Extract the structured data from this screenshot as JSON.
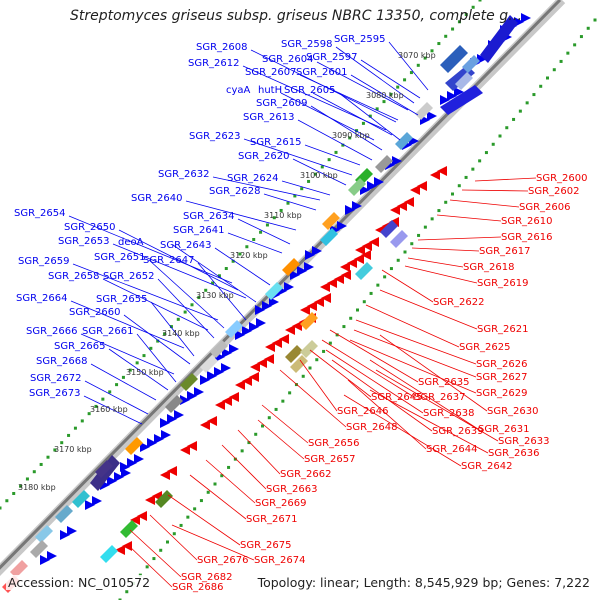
{
  "header": {
    "title": "Streptomyces griseus subsp. griseus NBRC 13350, complete gen..."
  },
  "footer": {
    "accession": "Accession: NC_010572",
    "summary": "Topology: linear; Length: 8,545,929 bp; Genes: 7,222"
  },
  "colors": {
    "forward": "#0000ee",
    "reverse": "#ee0000",
    "scale": "#888888",
    "gc": "#2a9a2a"
  },
  "scale_ticks": [
    "3070 kbp",
    "3080 kbp",
    "3090 kbp",
    "3100 kbp",
    "3110 kbp",
    "3120 kbp",
    "3130 kbp",
    "3140 kbp",
    "3150 kbp",
    "3160 kbp",
    "3170 kbp",
    "3180 kbp"
  ],
  "forward_labels": [
    "SGR_2595",
    "SGR_2597",
    "SGR_2598",
    "SGR_2601",
    "SGR_2604",
    "SGR_2607",
    "SGR_2608",
    "SGR_2612",
    "hutH",
    "SGR_2605",
    "cyaA",
    "SGR_2609",
    "SGR_2613",
    "SGR_2615",
    "SGR_2623",
    "SGR_2620",
    "SGR_2624",
    "SGR_2632",
    "SGR_2628",
    "SGR_2640",
    "SGR_2634",
    "SGR_2641",
    "SGR_2654",
    "SGR_2650",
    "SGR_2653",
    "deoA",
    "SGR_2643",
    "SGR_2659",
    "SGR_2651",
    "SGR_2647",
    "SGR_2658",
    "SGR_2652",
    "SGR_2664",
    "SGR_2655",
    "SGR_2660",
    "SGR_2666",
    "SGR_2661",
    "SGR_2665",
    "SGR_2668",
    "SGR_2672",
    "SGR_2673"
  ],
  "reverse_labels": [
    "SGR_2600",
    "SGR_2602",
    "SGR_2606",
    "SGR_2610",
    "SGR_2616",
    "SGR_2617",
    "SGR_2618",
    "SGR_2619",
    "SGR_2622",
    "SGR_2621",
    "SGR_2625",
    "SGR_2626",
    "SGR_2627",
    "SGR_2629",
    "SGR_2635",
    "SGR_2630",
    "SGR_2637",
    "SGR_2638",
    "SGR_2631",
    "SGR_2639",
    "SGR_2633",
    "SGR_2645",
    "SGR_2646",
    "SGR_2644",
    "SGR_2636",
    "SGR_2642",
    "SGR_2648",
    "SGR_2656",
    "SGR_2657",
    "SGR_2662",
    "SGR_2663",
    "SGR_2669",
    "SGR_2671",
    "SGR_2675",
    "SGR_2676",
    "SGR_2674",
    "SGR_2682",
    "SGR_2686"
  ]
}
